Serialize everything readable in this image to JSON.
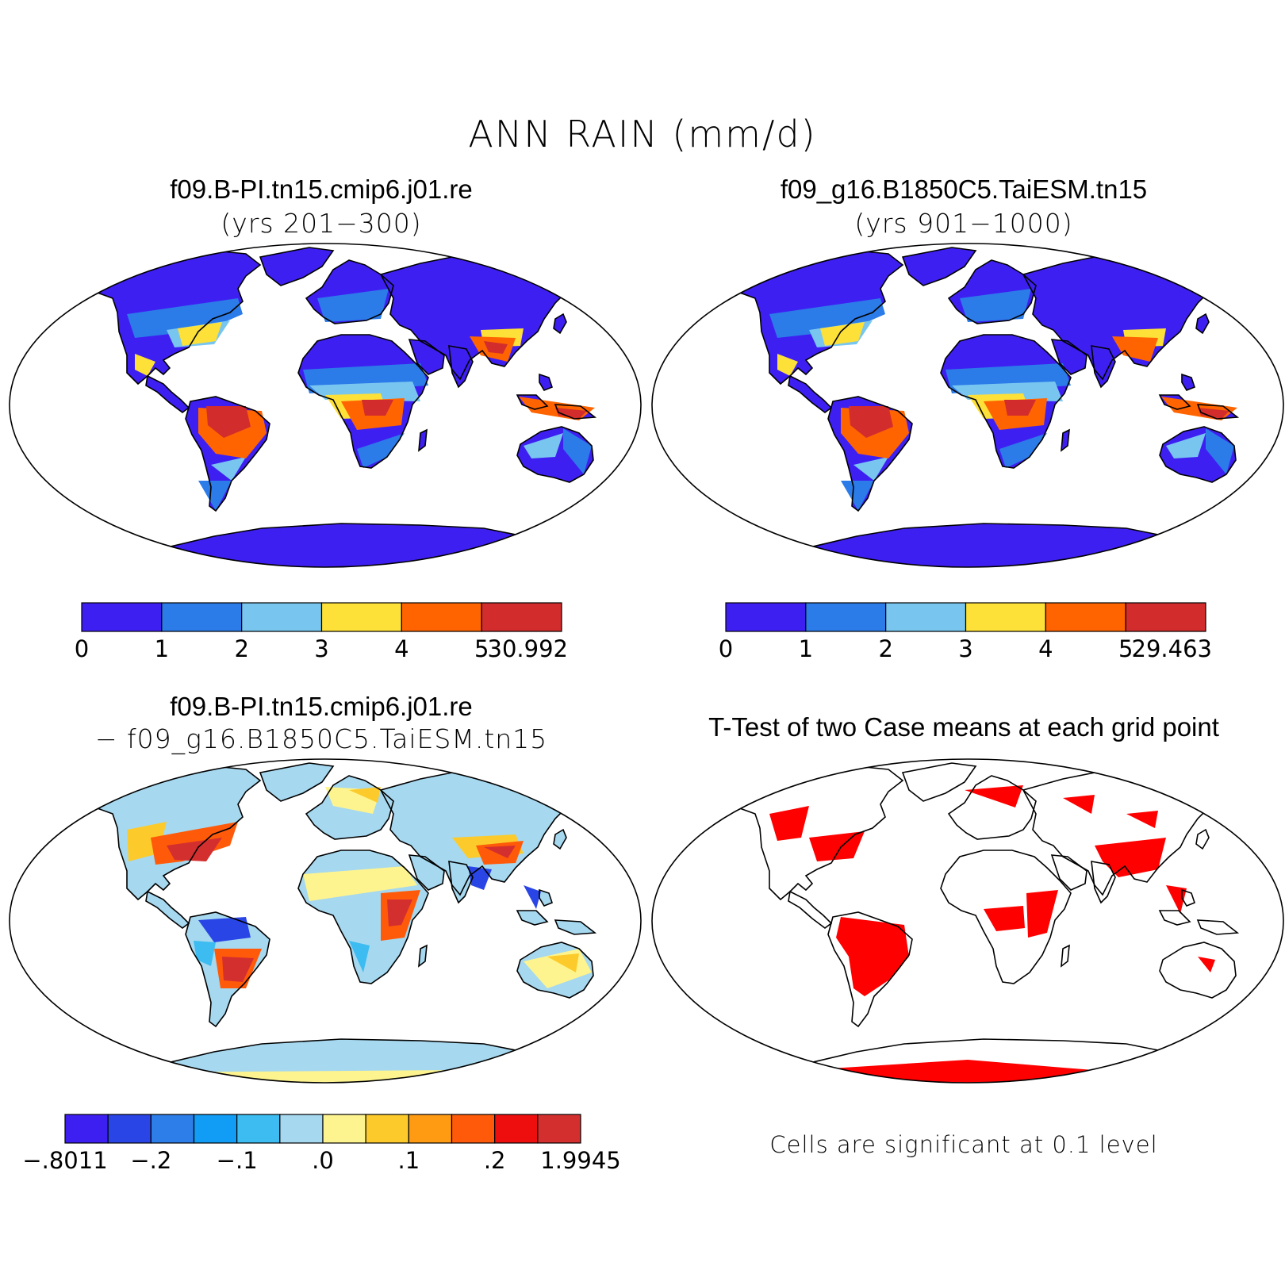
{
  "title": "ANN RAIN (mm/d)",
  "panels": [
    {
      "title": "f09.B-PI.tn15.cmip6.j01.re",
      "subtitle": "(yrs 201−300)",
      "colorbar": {
        "colors": [
          "#3e1ff2",
          "#2b7be8",
          "#78c6f0",
          "#fde038",
          "#ff6400",
          "#d22c2c"
        ],
        "labels": [
          "0",
          "1",
          "2",
          "3",
          "4",
          "5",
          "30.992"
        ]
      }
    },
    {
      "title": "f09_g16.B1850C5.TaiESM.tn15",
      "subtitle": "(yrs 901−1000)",
      "colorbar": {
        "colors": [
          "#3e1ff2",
          "#2b7be8",
          "#78c6f0",
          "#fde038",
          "#ff6400",
          "#d22c2c"
        ],
        "labels": [
          "0",
          "1",
          "2",
          "3",
          "4",
          "5",
          "29.463"
        ]
      }
    },
    {
      "title": "f09.B-PI.tn15.cmip6.j01.re",
      "subtitle": "− f09_g16.B1850C5.TaiESM.tn15",
      "colorbar": {
        "colors": [
          "#3e1ff2",
          "#2a45e6",
          "#2d7ee8",
          "#119cf5",
          "#3cbcf0",
          "#a6d8ef",
          "#fef48f",
          "#fccb2b",
          "#ff9a13",
          "#ff5a09",
          "#ee0e0e",
          "#d42f2f"
        ],
        "labels": [
          "−.8011",
          "−.2",
          "−.1",
          ".0",
          ".1",
          ".2",
          "1.9945"
        ]
      }
    },
    {
      "title": "T-Test of two Case means at each grid point",
      "note": "Cells are significant at 0.1 level",
      "color": "#ff0000"
    }
  ]
}
